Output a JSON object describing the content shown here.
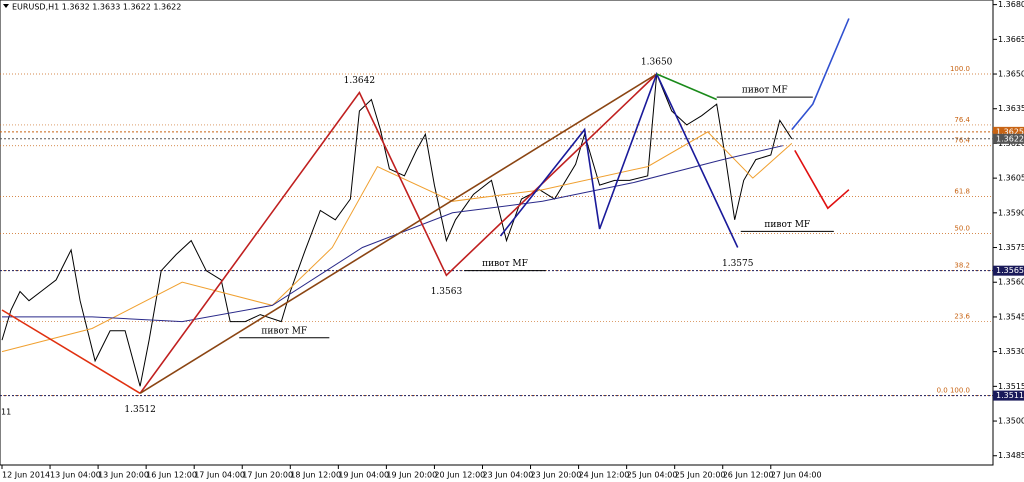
{
  "chart_data": {
    "type": "line",
    "title": "EURUSD,H1  1.3632 1.3633 1.3622 1.3622",
    "corner_text": "11",
    "xlim": [
      0,
      330
    ],
    "ylim": [
      1.3481,
      1.3682
    ],
    "xticks": [
      {
        "value": 0,
        "label": "12 Jun 2014"
      },
      {
        "value": 16,
        "label": "13 Jun 04:00"
      },
      {
        "value": 32,
        "label": "13 Jun 20:00"
      },
      {
        "value": 48,
        "label": "16 Jun 12:00"
      },
      {
        "value": 64,
        "label": "17 Jun 04:00"
      },
      {
        "value": 80,
        "label": "17 Jun 20:00"
      },
      {
        "value": 96,
        "label": "18 Jun 12:00"
      },
      {
        "value": 112,
        "label": "19 Jun 04:00"
      },
      {
        "value": 128,
        "label": "19 Jun 20:00"
      },
      {
        "value": 144,
        "label": "20 Jun 12:00"
      },
      {
        "value": 160,
        "label": "23 Jun 04:00"
      },
      {
        "value": 176,
        "label": "23 Jun 20:00"
      },
      {
        "value": 192,
        "label": "24 Jun 12:00"
      },
      {
        "value": 208,
        "label": "25 Jun 04:00"
      },
      {
        "value": 224,
        "label": "25 Jun 20:00"
      },
      {
        "value": 240,
        "label": "26 Jun 12:00"
      },
      {
        "value": 256,
        "label": "27 Jun 04:00"
      }
    ],
    "yticks": [
      {
        "value": 1.368,
        "label": "1.3680"
      },
      {
        "value": 1.3665,
        "label": "1.3665"
      },
      {
        "value": 1.365,
        "label": "1.3650"
      },
      {
        "value": 1.3635,
        "label": "1.3635"
      },
      {
        "value": 1.362,
        "label": "1.3620"
      },
      {
        "value": 1.3605,
        "label": "1.3605"
      },
      {
        "value": 1.359,
        "label": "1.3590"
      },
      {
        "value": 1.3575,
        "label": "1.3575"
      },
      {
        "value": 1.356,
        "label": "1.3560"
      },
      {
        "value": 1.3545,
        "label": "1.3545"
      },
      {
        "value": 1.353,
        "label": "1.3530"
      },
      {
        "value": 1.3515,
        "label": "1.3515"
      },
      {
        "value": 1.35,
        "label": "1.3500"
      },
      {
        "value": 1.3485,
        "label": "1.3485"
      }
    ],
    "series": [
      {
        "color": "#000000",
        "x": [
          0,
          3,
          6,
          9,
          13,
          18,
          23,
          26,
          31,
          36,
          41,
          46,
          49,
          53,
          58,
          63,
          68,
          73,
          76,
          81,
          86,
          93,
          96,
          101,
          106,
          111,
          116,
          119,
          123,
          126,
          129,
          134,
          138,
          141,
          144,
          148,
          151,
          157,
          163,
          168,
          173,
          179,
          184,
          191,
          194,
          199,
          204,
          209,
          215,
          218,
          223,
          228,
          233,
          238,
          241,
          244,
          247,
          251,
          256,
          259,
          263
        ],
        "values": [
          1.3535,
          1.3548,
          1.3556,
          1.3552,
          1.3556,
          1.3561,
          1.3574,
          1.3552,
          1.3526,
          1.3539,
          1.3539,
          1.3515,
          1.3535,
          1.3565,
          1.3572,
          1.3578,
          1.3565,
          1.3561,
          1.3543,
          1.3543,
          1.3546,
          1.3543,
          1.3556,
          1.3574,
          1.3591,
          1.3587,
          1.3596,
          1.3634,
          1.3639,
          1.3626,
          1.3609,
          1.3606,
          1.3617,
          1.3624,
          1.3602,
          1.3578,
          1.3587,
          1.3598,
          1.3604,
          1.3578,
          1.3596,
          1.36,
          1.3596,
          1.3611,
          1.3624,
          1.3602,
          1.3604,
          1.3604,
          1.3606,
          1.365,
          1.3634,
          1.3628,
          1.3632,
          1.3637,
          1.3613,
          1.3587,
          1.3604,
          1.3613,
          1.3615,
          1.363,
          1.3622
        ]
      },
      {
        "color": "#f0a030",
        "x": [
          0,
          30,
          60,
          90,
          110,
          125,
          150,
          180,
          215,
          235,
          250,
          263
        ],
        "values": [
          1.353,
          1.354,
          1.356,
          1.355,
          1.3575,
          1.361,
          1.3595,
          1.36,
          1.361,
          1.3625,
          1.3605,
          1.362
        ]
      },
      {
        "color": "#2a2a8a",
        "x": [
          0,
          30,
          60,
          90,
          120,
          150,
          180,
          210,
          240,
          260
        ],
        "values": [
          1.3545,
          1.3545,
          1.3543,
          1.355,
          1.3575,
          1.359,
          1.3595,
          1.3603,
          1.3613,
          1.3619
        ]
      }
    ],
    "drawings": [
      {
        "color": "#e03010",
        "x": [
          0,
          46
        ],
        "values": [
          1.3548,
          1.3512
        ]
      },
      {
        "color": "#c02020",
        "x": [
          46,
          119,
          148,
          218
        ],
        "values": [
          1.3512,
          1.3642,
          1.3563,
          1.365
        ]
      },
      {
        "color": "#8b4513",
        "x": [
          46,
          218
        ],
        "values": [
          1.3512,
          1.365
        ]
      },
      {
        "color": "#1a1a9a",
        "x": [
          166,
          194,
          199,
          218,
          245
        ],
        "values": [
          1.358,
          1.3626,
          1.3583,
          1.365,
          1.3575
        ]
      },
      {
        "color": "#1a8a1a",
        "x": [
          218,
          238
        ],
        "values": [
          1.365,
          1.3639
        ]
      },
      {
        "color": "#3050d0",
        "x": [
          263,
          270,
          282
        ],
        "values": [
          1.3626,
          1.3637,
          1.3674
        ]
      },
      {
        "color": "#e01010",
        "x": [
          264,
          275,
          282
        ],
        "values": [
          1.3617,
          1.3592,
          1.36
        ]
      }
    ],
    "pivots": [
      {
        "x": 119,
        "value": 1.3642
      },
      {
        "x": 218,
        "value": 1.365,
        "label": "1.3650"
      },
      {
        "x": 148,
        "value": 1.3563
      },
      {
        "x": 245,
        "value": 1.3575
      },
      {
        "x": 46,
        "value": 1.3512
      }
    ],
    "pivot_levels": [
      {
        "text": "пивот MF",
        "x": [
          79,
          109
        ],
        "value": 1.3536
      },
      {
        "text": "пивот MF",
        "x": [
          154,
          181
        ],
        "value": 1.3565
      },
      {
        "text": "пивот MF",
        "x": [
          246,
          277
        ],
        "value": 1.3582
      },
      {
        "text": "пивот MF",
        "x": [
          238,
          270
        ],
        "value": 1.364
      }
    ],
    "fib_levels": [
      {
        "label": "100.0",
        "value": 1.365
      },
      {
        "label": "76.4",
        "value": 1.3628
      },
      {
        "label": "76.4",
        "value": 1.3619
      },
      {
        "label": "61.8",
        "value": 1.3597
      },
      {
        "label": "50.0",
        "value": 1.3581
      },
      {
        "label": "38.2",
        "value": 1.3565
      },
      {
        "label": "23.6",
        "value": 1.3543
      },
      {
        "label": "0.0  100.0",
        "value": 1.3511
      }
    ],
    "price_tags": [
      {
        "value": 1.3625,
        "color": "#c86414"
      },
      {
        "value": 1.3622,
        "color": "#555555"
      },
      {
        "value": 1.3565,
        "color": "#1a1a5a"
      },
      {
        "value": 1.3511,
        "color": "#1a1a5a"
      }
    ]
  }
}
